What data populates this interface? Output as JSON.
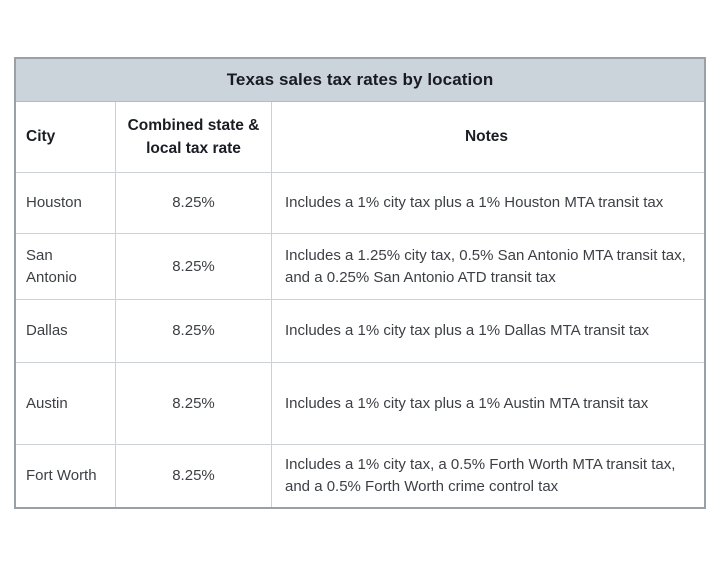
{
  "chart_data": {
    "type": "table",
    "title": "Texas sales tax rates by location",
    "columns": [
      "City",
      "Combined state & local tax rate",
      "Notes"
    ],
    "rows": [
      {
        "city": "Houston",
        "rate": "8.25%",
        "notes": "Includes a 1% city tax plus a 1% Houston MTA transit tax"
      },
      {
        "city": "San Antonio",
        "rate": "8.25%",
        "notes": "Includes a 1.25% city tax, 0.5% San Antonio MTA transit tax, and a 0.25% San Antonio ATD transit tax"
      },
      {
        "city": "Dallas",
        "rate": "8.25%",
        "notes": "Includes a 1% city tax plus a 1% Dallas MTA transit tax"
      },
      {
        "city": "Austin",
        "rate": "8.25%",
        "notes": "Includes a 1% city tax plus a 1% Austin MTA transit tax"
      },
      {
        "city": "Fort Worth",
        "rate": "8.25%",
        "notes": "Includes a 1% city tax, a 0.5% Forth Worth MTA transit tax, and a 0.5% Forth Worth crime control tax"
      }
    ],
    "layout_hints": {
      "title_position": "top-banner-centered",
      "rate_column_alignment": "center",
      "notes_column_alignment": "left",
      "grid": "on"
    }
  },
  "header": {
    "title": "Texas sales tax rates by location",
    "col_city": "City",
    "col_rate": "Combined state & local tax rate",
    "col_notes": "Notes"
  },
  "colors": {
    "title_bar_bg": "#ccd4db",
    "outer_border": "#9aa0a6",
    "inner_border": "#ccd1d5",
    "header_text": "#1a1d23",
    "body_text": "#3c3f44",
    "page_bg": "#ffffff"
  }
}
